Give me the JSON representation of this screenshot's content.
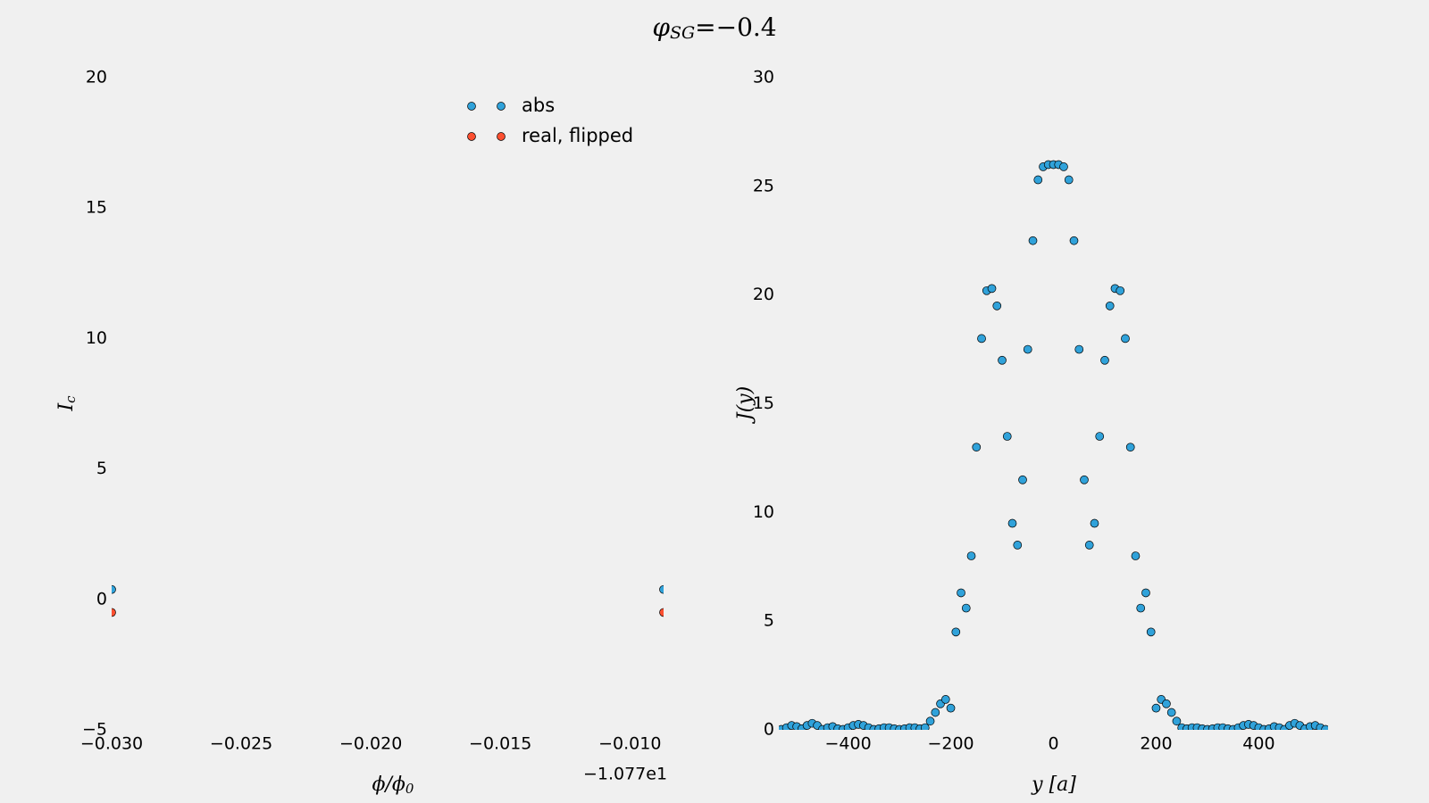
{
  "title": {
    "symbol": "φ",
    "subscript": "SG",
    "text": "=−0.4"
  },
  "chart_data": [
    {
      "type": "scatter",
      "xlabel": {
        "text": "ϕ/ϕ",
        "subscript": "0"
      },
      "ylabel": {
        "text": "I",
        "subscript": "c"
      },
      "x_offset_label": "−1.077e1",
      "xlim": [
        -0.03,
        -0.0087
      ],
      "ylim": [
        -5,
        20
      ],
      "xticks": [
        {
          "value": -0.03,
          "label": "−0.030"
        },
        {
          "value": -0.025,
          "label": "−0.025"
        },
        {
          "value": -0.02,
          "label": "−0.020"
        },
        {
          "value": -0.015,
          "label": "−0.015"
        },
        {
          "value": -0.01,
          "label": "−0.010"
        }
      ],
      "yticks": [
        {
          "value": -5,
          "label": "−5"
        },
        0,
        5,
        10,
        15,
        20
      ],
      "grid": false,
      "legend_loc": "upper right",
      "series": [
        {
          "name": "abs",
          "color": "#30a2da",
          "x": [
            -0.03,
            -0.0087
          ],
          "values": [
            0.38,
            0.38
          ]
        },
        {
          "name": "real, flipped",
          "color": "#fc4f30",
          "x": [
            -0.03,
            -0.0087
          ],
          "values": [
            -0.5,
            -0.5
          ]
        }
      ]
    },
    {
      "type": "scatter",
      "xlabel": "y [a]",
      "ylabel": "J(y)",
      "xlim": [
        -535,
        535
      ],
      "ylim": [
        0,
        30
      ],
      "xticks": [
        {
          "value": -400,
          "label": "−400"
        },
        {
          "value": -200,
          "label": "−200"
        },
        0,
        200,
        400
      ],
      "yticks": [
        0,
        5,
        10,
        15,
        20,
        25,
        30
      ],
      "grid": false,
      "color": "#30a2da",
      "x": [
        -530,
        -520,
        -510,
        -500,
        -490,
        -480,
        -470,
        -460,
        -450,
        -440,
        -430,
        -420,
        -410,
        -400,
        -390,
        -380,
        -370,
        -360,
        -350,
        -340,
        -330,
        -320,
        -310,
        -300,
        -290,
        -280,
        -270,
        -260,
        -250,
        -240,
        -230,
        -220,
        -210,
        -200,
        -190,
        -180,
        -170,
        -160,
        -150,
        -140,
        -130,
        -120,
        -110,
        -100,
        -90,
        -80,
        -70,
        -60,
        -50,
        -40,
        -30,
        -20,
        -10,
        0,
        10,
        20,
        30,
        40,
        50,
        60,
        70,
        80,
        90,
        100,
        110,
        120,
        130,
        140,
        150,
        160,
        170,
        180,
        190,
        200,
        210,
        220,
        230,
        240,
        250,
        260,
        270,
        280,
        290,
        300,
        310,
        320,
        330,
        340,
        350,
        360,
        370,
        380,
        390,
        400,
        410,
        420,
        430,
        440,
        450,
        460,
        470,
        480,
        490,
        500,
        510,
        520,
        530
      ],
      "values": [
        0.02,
        0.1,
        0.2,
        0.15,
        0.05,
        0.2,
        0.3,
        0.2,
        0.02,
        0.1,
        0.15,
        0.05,
        0.02,
        0.1,
        0.2,
        0.25,
        0.2,
        0.1,
        0.02,
        0.05,
        0.1,
        0.1,
        0.05,
        0.02,
        0.05,
        0.1,
        0.1,
        0.05,
        0.1,
        0.4,
        0.8,
        1.2,
        1.4,
        1,
        4.5,
        6.3,
        5.6,
        8,
        13,
        18,
        20.2,
        20.3,
        19.5,
        17,
        13.5,
        9.5,
        8.5,
        11.5,
        17.5,
        22.5,
        25.3,
        25.9,
        26,
        26,
        26,
        25.9,
        25.3,
        22.5,
        17.5,
        11.5,
        8.5,
        9.5,
        13.5,
        17,
        19.5,
        20.3,
        20.2,
        18,
        13,
        8,
        5.6,
        6.3,
        4.5,
        1,
        1.4,
        1.2,
        0.8,
        0.4,
        0.1,
        0.05,
        0.1,
        0.1,
        0.05,
        0.02,
        0.05,
        0.1,
        0.1,
        0.05,
        0.02,
        0.1,
        0.2,
        0.25,
        0.2,
        0.1,
        0.02,
        0.05,
        0.15,
        0.1,
        0.02,
        0.2,
        0.3,
        0.2,
        0.05,
        0.15,
        0.2,
        0.1,
        0.02
      ]
    }
  ]
}
